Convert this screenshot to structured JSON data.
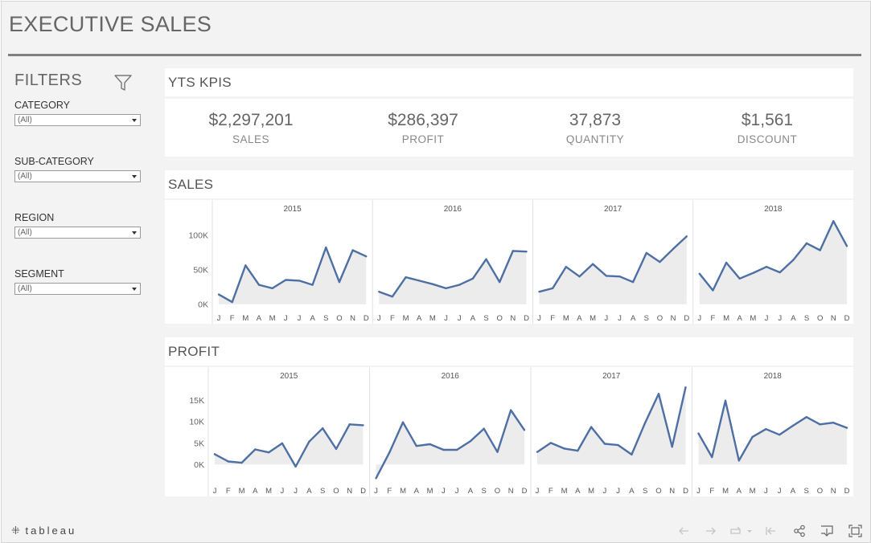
{
  "title": "EXECUTIVE SALES",
  "filters": {
    "heading": "FILTERS",
    "items": [
      {
        "label": "CATEGORY",
        "value": "(All)"
      },
      {
        "label": "SUB-CATEGORY",
        "value": "(All)"
      },
      {
        "label": "REGION",
        "value": "(All)"
      },
      {
        "label": "SEGMENT",
        "value": "(All)"
      }
    ]
  },
  "kpi_section": {
    "heading": "YTS KPIS",
    "items": [
      {
        "value": "$2,297,201",
        "label": "SALES"
      },
      {
        "value": "$286,397",
        "label": "PROFIT"
      },
      {
        "value": "37,873",
        "label": "QUANTITY"
      },
      {
        "value": "$1,561",
        "label": "DISCOUNT"
      }
    ]
  },
  "sales_section": {
    "heading": "SALES"
  },
  "profit_section": {
    "heading": "PROFIT"
  },
  "footer": {
    "logo": "tableau",
    "icons": [
      "undo-icon",
      "redo-icon",
      "revert-icon",
      "reset-icon",
      "share-icon",
      "download-icon",
      "fullscreen-icon"
    ]
  },
  "colors": {
    "line": "#4e6fa3",
    "area": "#ececec"
  },
  "chart_data": [
    {
      "type": "area",
      "title": "SALES",
      "panels": [
        "2015",
        "2016",
        "2017",
        "2018"
      ],
      "months": [
        "J",
        "F",
        "M",
        "A",
        "M",
        "J",
        "J",
        "A",
        "S",
        "O",
        "N",
        "D"
      ],
      "y_ticks": [
        {
          "value": 0,
          "label": "0K"
        },
        {
          "value": 50000,
          "label": "50K"
        },
        {
          "value": 100000,
          "label": "100K"
        }
      ],
      "ylim": [
        -5000,
        125000
      ],
      "series": [
        {
          "year": "2015",
          "values": [
            14000,
            3000,
            56000,
            28000,
            23000,
            35000,
            34000,
            28000,
            82000,
            32000,
            78000,
            69000
          ]
        },
        {
          "year": "2016",
          "values": [
            18000,
            11000,
            39000,
            34000,
            29000,
            23000,
            28000,
            37000,
            65000,
            32000,
            77000,
            76000
          ]
        },
        {
          "year": "2017",
          "values": [
            18000,
            23000,
            54000,
            40000,
            58000,
            41000,
            40000,
            32000,
            74000,
            61000,
            80000,
            98000
          ]
        },
        {
          "year": "2018",
          "values": [
            44000,
            20000,
            60000,
            37000,
            45000,
            54000,
            46000,
            64000,
            88000,
            78000,
            120000,
            84000
          ]
        }
      ]
    },
    {
      "type": "area",
      "title": "PROFIT",
      "panels": [
        "2015",
        "2016",
        "2017",
        "2018"
      ],
      "months": [
        "J",
        "F",
        "M",
        "A",
        "M",
        "J",
        "J",
        "A",
        "S",
        "O",
        "N",
        "D"
      ],
      "y_ticks": [
        {
          "value": 0,
          "label": "0K"
        },
        {
          "value": 5000,
          "label": "5K"
        },
        {
          "value": 10000,
          "label": "10K"
        },
        {
          "value": 15000,
          "label": "15K"
        }
      ],
      "ylim": [
        -3500,
        18500
      ],
      "series": [
        {
          "year": "2015",
          "values": [
            2400,
            700,
            400,
            3500,
            2800,
            4900,
            -500,
            5300,
            8400,
            3600,
            9300,
            9100
          ]
        },
        {
          "year": "2016",
          "values": [
            -3200,
            2800,
            9800,
            4300,
            4700,
            3400,
            3400,
            5400,
            8300,
            2900,
            12600,
            8000
          ]
        },
        {
          "year": "2017",
          "values": [
            2900,
            5000,
            3700,
            3200,
            8700,
            4800,
            4500,
            2300,
            9700,
            16400,
            4100,
            17900
          ]
        },
        {
          "year": "2018",
          "values": [
            7200,
            1700,
            14800,
            900,
            6400,
            8200,
            6900,
            9000,
            11000,
            9300,
            9700,
            8500
          ]
        }
      ]
    }
  ]
}
